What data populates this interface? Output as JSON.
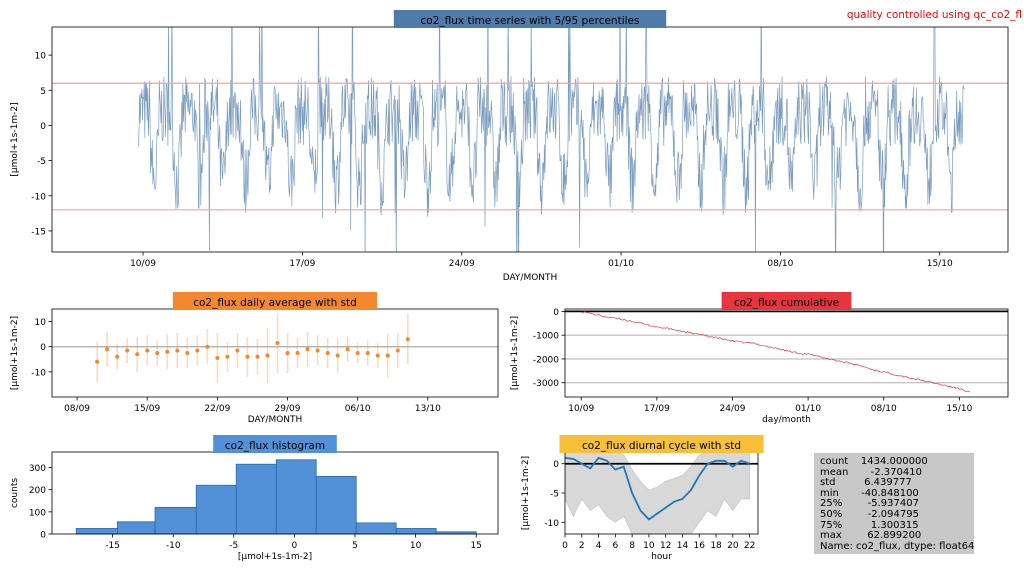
{
  "qc_note": "quality controlled using qc_co2_fl",
  "chart_data": [
    {
      "type": "line",
      "title": "co2_flux time series with 5/95 percentiles",
      "title_bg": "#4f7bab",
      "xlabel": "DAY/MONTH",
      "ylabel": "[µmol+1s-1m-2]",
      "x_ticks": [
        "10/09",
        "17/09",
        "24/09",
        "01/10",
        "08/10",
        "15/10"
      ],
      "x_range": [
        "2020-09-06",
        "2020-10-18"
      ],
      "y_ticks": [
        -15,
        -10,
        -5,
        0,
        5,
        10
      ],
      "ylim": [
        -18,
        14
      ],
      "percentile_lines": [
        6,
        -12
      ],
      "series_color": "#7a9cc0",
      "percentile_color": "#f4a0a0"
    },
    {
      "type": "scatter",
      "title": "co2_flux daily average with std",
      "title_bg": "#f5882e",
      "xlabel": "DAY/MONTH",
      "ylabel": "[µmol+1s-1m-2]",
      "x_ticks": [
        "08/09",
        "15/09",
        "22/09",
        "29/09",
        "06/10",
        "13/10"
      ],
      "y_ticks": [
        -10,
        0,
        10
      ],
      "ylim": [
        -20,
        15
      ],
      "mean": [
        -6,
        -1,
        -4,
        -1.5,
        -3,
        -1.5,
        -2.5,
        -2,
        -1.5,
        -2.5,
        -1.5,
        0,
        -4.5,
        -4,
        -1.5,
        -4,
        -4,
        -3.5,
        1.5,
        -2.5,
        -2.5,
        -1,
        -1.5,
        -2.5,
        -3.5,
        -1,
        -2.5,
        -2.5,
        -3.5,
        -3.5,
        -1.5,
        3
      ],
      "std": [
        8,
        7,
        5,
        5,
        7,
        6,
        5,
        7,
        7,
        6,
        6,
        7,
        10,
        6,
        7,
        8,
        7,
        11,
        12,
        8,
        6,
        7,
        6,
        6,
        7,
        5,
        4,
        5,
        5,
        9,
        7,
        10
      ],
      "color": "#f5882e"
    },
    {
      "type": "line",
      "title": "co2_flux cumulative",
      "title_bg": "#e8343f",
      "xlabel": "day/month",
      "ylabel": "[µmol+1s-1m-2]",
      "x_ticks": [
        "10/09",
        "17/09",
        "24/09",
        "01/10",
        "08/10",
        "15/10"
      ],
      "y_ticks": [
        -3000,
        -2000,
        -1000,
        0
      ],
      "ylim": [
        -3600,
        100
      ],
      "points": [
        [
          0,
          0
        ],
        [
          1,
          -100
        ],
        [
          2,
          -200
        ],
        [
          3,
          -280
        ],
        [
          4,
          -350
        ],
        [
          5,
          -450
        ],
        [
          6,
          -550
        ],
        [
          7,
          -650
        ],
        [
          8,
          -720
        ],
        [
          9,
          -800
        ],
        [
          10,
          -900
        ],
        [
          11,
          -980
        ],
        [
          12,
          -1060
        ],
        [
          13,
          -1150
        ],
        [
          14,
          -1250
        ],
        [
          15,
          -1300
        ],
        [
          16,
          -1350
        ],
        [
          17,
          -1450
        ],
        [
          18,
          -1550
        ],
        [
          19,
          -1650
        ],
        [
          20,
          -1750
        ],
        [
          21,
          -1800
        ],
        [
          22,
          -1900
        ],
        [
          23,
          -2000
        ],
        [
          24,
          -2100
        ],
        [
          25,
          -2200
        ],
        [
          26,
          -2300
        ],
        [
          27,
          -2450
        ],
        [
          28,
          -2550
        ],
        [
          29,
          -2650
        ],
        [
          30,
          -2750
        ],
        [
          31,
          -2850
        ],
        [
          32,
          -2950
        ],
        [
          33,
          -3050
        ],
        [
          34,
          -3150
        ],
        [
          35,
          -3250
        ],
        [
          36,
          -3400
        ]
      ],
      "color": "#e8343f"
    },
    {
      "type": "bar",
      "title": "co2_flux histogram",
      "title_bg": "#5291d8",
      "xlabel": "[µmol+1s-1m-2]",
      "ylabel": "counts",
      "bin_edges": [
        -18,
        -14.6,
        -11.5,
        -8.1,
        -4.8,
        -1.5,
        1.8,
        5.1,
        8.4,
        11.7,
        15
      ],
      "values": [
        25,
        55,
        120,
        220,
        315,
        335,
        260,
        50,
        25,
        10
      ],
      "x_ticks": [
        -15,
        -10,
        -5,
        0,
        5,
        10,
        15
      ],
      "y_ticks": [
        0,
        100,
        200,
        300
      ],
      "ylim": [
        0,
        370
      ],
      "color": "#5291d8"
    },
    {
      "type": "area",
      "title": "co2_flux diurnal cycle with std",
      "title_bg": "#f8c038",
      "xlabel": "hour",
      "ylabel": "[µmol+1s-1m-2]",
      "x_ticks": [
        0,
        2,
        4,
        6,
        8,
        10,
        12,
        14,
        16,
        18,
        20,
        22
      ],
      "y_ticks": [
        -10,
        -5,
        0
      ],
      "ylim": [
        -12,
        2
      ],
      "mean": [
        1,
        0.8,
        0,
        -0.8,
        1,
        0.5,
        -1,
        -0.5,
        -5,
        -8,
        -9.5,
        -8.5,
        -7.5,
        -6.5,
        -6,
        -4.5,
        -2,
        0,
        0.5,
        0.5,
        -0.5,
        0.5,
        0
      ],
      "upper": [
        2,
        2,
        2,
        2,
        2,
        2,
        2,
        1.5,
        -1,
        -3,
        -4.5,
        -4,
        -3,
        -2.5,
        -2,
        -0.5,
        1.5,
        2,
        2,
        2,
        2,
        2,
        2
      ],
      "lower": [
        -6,
        -9,
        -6,
        -8,
        -7,
        -9,
        -10,
        -9,
        -12,
        -12,
        -12,
        -12,
        -12,
        -12,
        -12,
        -12,
        -10,
        -8,
        -9,
        -6,
        -8,
        -6,
        -6
      ],
      "line_color": "#1f77b4",
      "band_color": "#d8d8d8"
    }
  ],
  "stats": {
    "rows": [
      {
        "label": "count",
        "value": "1434.000000"
      },
      {
        "label": "mean",
        "value": "-2.370410"
      },
      {
        "label": "std",
        "value": "6.439777"
      },
      {
        "label": "min",
        "value": "-40.848100"
      },
      {
        "label": "25%",
        "value": "-5.937407"
      },
      {
        "label": "50%",
        "value": "-2.094795"
      },
      {
        "label": "75%",
        "value": "1.300315"
      },
      {
        "label": "max",
        "value": "62.899200"
      }
    ],
    "footer": "Name: co2_flux, dtype: float64"
  }
}
